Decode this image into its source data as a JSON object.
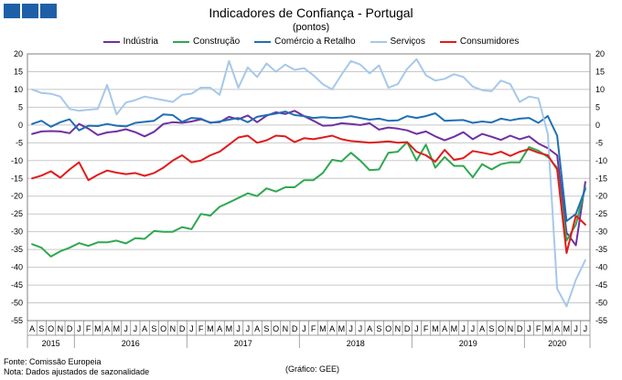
{
  "header": {
    "title": "Indicadores de Confiança - Portugal",
    "subtitle": "(pontos)"
  },
  "footer": {
    "source": "Fonte: Comissão Europeia",
    "note": "Nota: Dados ajustados de sazonalidade",
    "credit": "(Gráfico: GEE)"
  },
  "colors": {
    "industria": "#7030a0",
    "construcao": "#2ea84f",
    "comercio": "#1f6fb4",
    "servicos": "#a6c8ea",
    "consumidores": "#e01b1b",
    "grid": "#c8c8c8"
  },
  "chart_data": {
    "type": "line",
    "ylim": [
      -55,
      20
    ],
    "yticks": [
      20,
      15,
      10,
      5,
      0,
      -5,
      -10,
      -15,
      -20,
      -25,
      -30,
      -35,
      -40,
      -45,
      -50,
      -55
    ],
    "grid": true,
    "legend_position": "top",
    "x": [
      "A",
      "S",
      "O",
      "N",
      "D",
      "J",
      "F",
      "M",
      "A",
      "M",
      "J",
      "J",
      "A",
      "S",
      "O",
      "N",
      "D",
      "J",
      "F",
      "M",
      "A",
      "M",
      "J",
      "J",
      "A",
      "S",
      "O",
      "N",
      "D",
      "J",
      "F",
      "M",
      "A",
      "M",
      "J",
      "J",
      "A",
      "S",
      "O",
      "N",
      "D",
      "J",
      "F",
      "M",
      "A",
      "M",
      "J",
      "J",
      "A",
      "S",
      "O",
      "N",
      "D",
      "J",
      "F",
      "M",
      "A",
      "M",
      "J",
      "J"
    ],
    "years": [
      {
        "label": "2015",
        "start": 0,
        "end": 4
      },
      {
        "label": "2016",
        "start": 5,
        "end": 16
      },
      {
        "label": "2017",
        "start": 17,
        "end": 28
      },
      {
        "label": "2018",
        "start": 29,
        "end": 40
      },
      {
        "label": "2019",
        "start": 41,
        "end": 52
      },
      {
        "label": "2020",
        "start": 53,
        "end": 59
      }
    ],
    "series": [
      {
        "name": "Indústria",
        "color_key": "industria",
        "values": [
          -2.5,
          -1.8,
          -1.7,
          -1.8,
          -2.3,
          0.3,
          -1.0,
          -2.8,
          -2.1,
          -1.8,
          -1.2,
          -2.0,
          -3.2,
          -1.9,
          0.3,
          0.8,
          0.6,
          1.0,
          1.6,
          0.7,
          0.8,
          2.3,
          1.6,
          2.7,
          0.8,
          2.6,
          3.6,
          3.1,
          4.0,
          2.5,
          1.2,
          -0.2,
          -0.1,
          0.5,
          0.3,
          0.0,
          0.5,
          -1.3,
          -0.7,
          -1.0,
          -1.5,
          -2.5,
          -1.8,
          -3.2,
          -4.3,
          -3.3,
          -2.0,
          -4.0,
          -2.5,
          -3.3,
          -4.2,
          -3.0,
          -4.0,
          -3.2,
          -5.2,
          -6.5,
          -8.5,
          -30.3,
          -33.8,
          -16.0
        ]
      },
      {
        "name": "Construção",
        "color_key": "construcao",
        "values": [
          -33.5,
          -34.5,
          -37.0,
          -35.5,
          -34.5,
          -33.2,
          -34.0,
          -33.0,
          -33.0,
          -32.5,
          -33.3,
          -31.8,
          -32.0,
          -29.8,
          -30.0,
          -30.0,
          -28.7,
          -29.3,
          -25.0,
          -25.5,
          -23.0,
          -21.8,
          -20.5,
          -19.2,
          -20.0,
          -17.8,
          -18.7,
          -17.5,
          -17.5,
          -15.5,
          -15.5,
          -13.5,
          -9.8,
          -10.2,
          -7.8,
          -10.0,
          -12.7,
          -12.5,
          -7.8,
          -7.5,
          -4.8,
          -10.0,
          -5.5,
          -12.0,
          -9.0,
          -11.5,
          -11.5,
          -14.7,
          -11.0,
          -12.5,
          -11.0,
          -10.5,
          -10.5,
          -6.2,
          -7.2,
          -9.0,
          -12.0,
          -32.5,
          -28.0,
          -17.5
        ]
      },
      {
        "name": "Comércio a Retalho",
        "color_key": "comercio",
        "values": [
          0.3,
          1.2,
          -0.5,
          0.8,
          1.6,
          -1.5,
          -0.2,
          -0.3,
          0.3,
          -0.2,
          -0.4,
          0.6,
          0.9,
          1.2,
          3.0,
          2.8,
          0.9,
          2.0,
          1.8,
          0.6,
          1.0,
          1.5,
          2.0,
          0.8,
          2.3,
          2.8,
          3.2,
          3.8,
          2.8,
          2.5,
          2.0,
          2.2,
          2.0,
          2.1,
          2.5,
          2.0,
          1.5,
          1.8,
          1.2,
          1.3,
          2.5,
          2.0,
          2.5,
          3.3,
          1.2,
          1.3,
          1.4,
          0.6,
          1.0,
          0.7,
          1.8,
          1.3,
          1.8,
          2.0,
          0.6,
          2.5,
          -3.0,
          -27.0,
          -25.0,
          -18.0
        ]
      },
      {
        "name": "Serviços",
        "color_key": "servicos",
        "values": [
          10.0,
          9.0,
          8.8,
          8.0,
          4.5,
          4.0,
          4.3,
          4.5,
          11.3,
          3.0,
          6.3,
          7.0,
          8.0,
          7.5,
          7.0,
          6.5,
          8.5,
          8.8,
          10.5,
          10.5,
          8.5,
          18.0,
          10.5,
          16.2,
          13.5,
          17.3,
          15.0,
          17.0,
          15.5,
          16.0,
          14.0,
          11.5,
          10.0,
          14.2,
          18.0,
          17.0,
          14.5,
          16.8,
          10.5,
          11.5,
          15.8,
          18.5,
          14.0,
          12.5,
          13.0,
          14.3,
          13.5,
          10.8,
          9.8,
          9.5,
          12.5,
          11.5,
          6.5,
          8.0,
          7.5,
          -2.5,
          -46.0,
          -51.0,
          -43.5,
          -38.0
        ]
      },
      {
        "name": "Consumidores",
        "color_key": "consumidores",
        "values": [
          -15.0,
          -14.2,
          -13.0,
          -14.8,
          -12.5,
          -10.5,
          -15.5,
          -14.0,
          -12.8,
          -13.4,
          -13.8,
          -13.5,
          -14.3,
          -13.5,
          -12.0,
          -10.0,
          -8.5,
          -10.5,
          -10.0,
          -8.5,
          -7.5,
          -5.5,
          -3.5,
          -3.0,
          -5.0,
          -4.3,
          -3.0,
          -3.2,
          -4.8,
          -3.7,
          -4.0,
          -3.5,
          -3.0,
          -4.0,
          -4.5,
          -4.7,
          -5.0,
          -4.8,
          -4.6,
          -5.0,
          -4.8,
          -7.5,
          -8.5,
          -10.3,
          -7.0,
          -9.8,
          -9.3,
          -7.3,
          -7.8,
          -8.3,
          -7.5,
          -8.7,
          -7.5,
          -6.8,
          -7.8,
          -8.5,
          -12.5,
          -36.0,
          -25.5,
          -28.0
        ]
      }
    ]
  }
}
